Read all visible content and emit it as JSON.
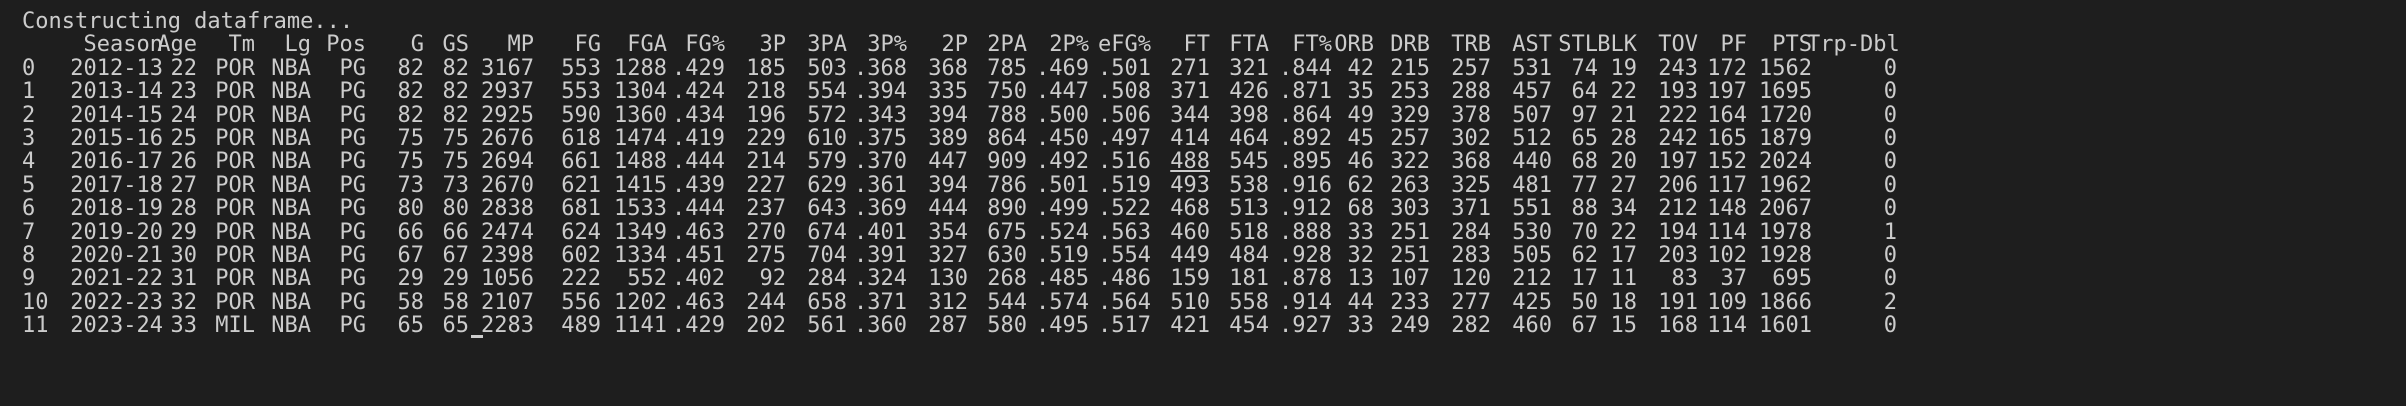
{
  "terminal": {
    "status_line": "Constructing dataframe...",
    "columns": [
      "",
      "Season",
      "Age",
      "Tm",
      "Lg",
      "Pos",
      "G",
      "GS",
      "MP",
      "FG",
      "FGA",
      "FG%",
      "3P",
      "3PA",
      "3P%",
      "2P",
      "2PA",
      "2P%",
      "eFG%",
      "FT",
      "FTA",
      "FT%",
      "ORB",
      "DRB",
      "TRB",
      "AST",
      "STL",
      "BLK",
      "TOV",
      "PF",
      "PTS",
      "Trp-Dbl"
    ],
    "rows": [
      [
        "0",
        "2012-13",
        "22",
        "POR",
        "NBA",
        "PG",
        "82",
        "82",
        "3167",
        "553",
        "1288",
        ".429",
        "185",
        "503",
        ".368",
        "368",
        "785",
        ".469",
        ".501",
        "271",
        "321",
        ".844",
        "42",
        "215",
        "257",
        "531",
        "74",
        "19",
        "243",
        "172",
        "1562",
        "0"
      ],
      [
        "1",
        "2013-14",
        "23",
        "POR",
        "NBA",
        "PG",
        "82",
        "82",
        "2937",
        "553",
        "1304",
        ".424",
        "218",
        "554",
        ".394",
        "335",
        "750",
        ".447",
        ".508",
        "371",
        "426",
        ".871",
        "35",
        "253",
        "288",
        "457",
        "64",
        "22",
        "193",
        "197",
        "1695",
        "0"
      ],
      [
        "2",
        "2014-15",
        "24",
        "POR",
        "NBA",
        "PG",
        "82",
        "82",
        "2925",
        "590",
        "1360",
        ".434",
        "196",
        "572",
        ".343",
        "394",
        "788",
        ".500",
        ".506",
        "344",
        "398",
        ".864",
        "49",
        "329",
        "378",
        "507",
        "97",
        "21",
        "222",
        "164",
        "1720",
        "0"
      ],
      [
        "3",
        "2015-16",
        "25",
        "POR",
        "NBA",
        "PG",
        "75",
        "75",
        "2676",
        "618",
        "1474",
        ".419",
        "229",
        "610",
        ".375",
        "389",
        "864",
        ".450",
        ".497",
        "414",
        "464",
        ".892",
        "45",
        "257",
        "302",
        "512",
        "65",
        "28",
        "242",
        "165",
        "1879",
        "0"
      ],
      [
        "4",
        "2016-17",
        "26",
        "POR",
        "NBA",
        "PG",
        "75",
        "75",
        "2694",
        "661",
        "1488",
        ".444",
        "214",
        "579",
        ".370",
        "447",
        "909",
        ".492",
        ".516",
        "488",
        "545",
        ".895",
        "46",
        "322",
        "368",
        "440",
        "68",
        "20",
        "197",
        "152",
        "2024",
        "0"
      ],
      [
        "5",
        "2017-18",
        "27",
        "POR",
        "NBA",
        "PG",
        "73",
        "73",
        "2670",
        "621",
        "1415",
        ".439",
        "227",
        "629",
        ".361",
        "394",
        "786",
        ".501",
        ".519",
        "493",
        "538",
        ".916",
        "62",
        "263",
        "325",
        "481",
        "77",
        "27",
        "206",
        "117",
        "1962",
        "0"
      ],
      [
        "6",
        "2018-19",
        "28",
        "POR",
        "NBA",
        "PG",
        "80",
        "80",
        "2838",
        "681",
        "1533",
        ".444",
        "237",
        "643",
        ".369",
        "444",
        "890",
        ".499",
        ".522",
        "468",
        "513",
        ".912",
        "68",
        "303",
        "371",
        "551",
        "88",
        "34",
        "212",
        "148",
        "2067",
        "0"
      ],
      [
        "7",
        "2019-20",
        "29",
        "POR",
        "NBA",
        "PG",
        "66",
        "66",
        "2474",
        "624",
        "1349",
        ".463",
        "270",
        "674",
        ".401",
        "354",
        "675",
        ".524",
        ".563",
        "460",
        "518",
        ".888",
        "33",
        "251",
        "284",
        "530",
        "70",
        "22",
        "194",
        "114",
        "1978",
        "1"
      ],
      [
        "8",
        "2020-21",
        "30",
        "POR",
        "NBA",
        "PG",
        "67",
        "67",
        "2398",
        "602",
        "1334",
        ".451",
        "275",
        "704",
        ".391",
        "327",
        "630",
        ".519",
        ".554",
        "449",
        "484",
        ".928",
        "32",
        "251",
        "283",
        "505",
        "62",
        "17",
        "203",
        "102",
        "1928",
        "0"
      ],
      [
        "9",
        "2021-22",
        "31",
        "POR",
        "NBA",
        "PG",
        "29",
        "29",
        "1056",
        "222",
        "552",
        ".402",
        "92",
        "284",
        ".324",
        "130",
        "268",
        ".485",
        ".486",
        "159",
        "181",
        ".878",
        "13",
        "107",
        "120",
        "212",
        "17",
        "11",
        "83",
        "37",
        "695",
        "0"
      ],
      [
        "10",
        "2022-23",
        "32",
        "POR",
        "NBA",
        "PG",
        "58",
        "58",
        "2107",
        "556",
        "1202",
        ".463",
        "244",
        "658",
        ".371",
        "312",
        "544",
        ".574",
        ".564",
        "510",
        "558",
        ".914",
        "44",
        "233",
        "277",
        "425",
        "50",
        "18",
        "191",
        "109",
        "1866",
        "2"
      ],
      [
        "11",
        "2023-24",
        "33",
        "MIL",
        "NBA",
        "PG",
        "65",
        "65",
        "2283",
        "489",
        "1141",
        ".429",
        "202",
        "561",
        ".360",
        "287",
        "580",
        ".495",
        ".517",
        "421",
        "454",
        ".927",
        "33",
        "249",
        "282",
        "460",
        "67",
        "15",
        "168",
        "114",
        "1601",
        "0"
      ]
    ]
  }
}
